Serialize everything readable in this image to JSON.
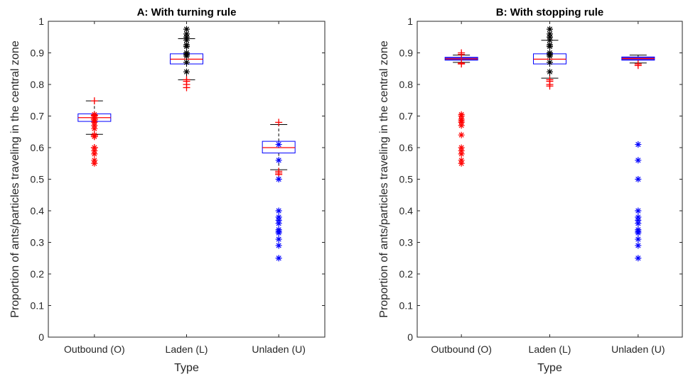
{
  "chart_data": [
    {
      "type": "box",
      "title": "A: With turning rule",
      "xlabel": "Type",
      "ylabel": "Proportion of ants/particles traveling in the central zone",
      "ylim": [
        0,
        1
      ],
      "yticks": [
        "0",
        "0.1",
        "0.2",
        "0.3",
        "0.4",
        "0.5",
        "0.6",
        "0.7",
        "0.8",
        "0.9",
        "1"
      ],
      "grid": false,
      "categories": [
        "Outbound (O)",
        "Laden (L)",
        "Unladen (U)"
      ],
      "boxes": [
        {
          "category": "Outbound (O)",
          "min": 0.642,
          "q1": 0.683,
          "median": 0.695,
          "q3": 0.707,
          "max": 0.748,
          "outliers_plus": [
            0.748,
            0.702,
            0.695,
            0.69,
            0.64,
            0.635,
            0.6
          ],
          "outliers_star": [
            0.705,
            0.7,
            0.69,
            0.685,
            0.68,
            0.67,
            0.66,
            0.64,
            0.635,
            0.6,
            0.59,
            0.58,
            0.56,
            0.55
          ]
        },
        {
          "category": "Laden (L)",
          "min": 0.815,
          "q1": 0.865,
          "median": 0.88,
          "q3": 0.897,
          "max": 0.945,
          "outliers_plus": [
            0.815,
            0.81,
            0.8,
            0.79
          ],
          "outliers_star": [
            0.975,
            0.96,
            0.95,
            0.94,
            0.925,
            0.92,
            0.9,
            0.895,
            0.89,
            0.87,
            0.84
          ]
        },
        {
          "category": "Unladen (U)",
          "min": 0.53,
          "q1": 0.583,
          "median": 0.6,
          "q3": 0.62,
          "max": 0.673,
          "outliers_plus": [
            0.68,
            0.525,
            0.52,
            0.515
          ],
          "outliers_star": [
            0.61,
            0.56,
            0.5,
            0.4,
            0.38,
            0.37,
            0.36,
            0.34,
            0.335,
            0.33,
            0.31,
            0.29,
            0.25
          ]
        }
      ]
    },
    {
      "type": "box",
      "title": "B: With stopping rule",
      "xlabel": "Type",
      "ylabel": "Proportion of ants/particles traveling in the central zone",
      "ylim": [
        0,
        1
      ],
      "yticks": [
        "0",
        "0.1",
        "0.2",
        "0.3",
        "0.4",
        "0.5",
        "0.6",
        "0.7",
        "0.8",
        "0.9",
        "1"
      ],
      "grid": false,
      "categories": [
        "Outbound (O)",
        "Laden (L)",
        "Unladen (U)"
      ],
      "boxes": [
        {
          "category": "Outbound (O)",
          "min": 0.87,
          "q1": 0.877,
          "median": 0.881,
          "q3": 0.886,
          "max": 0.893,
          "outliers_plus": [
            0.9,
            0.895,
            0.868,
            0.865
          ],
          "outliers_star": [
            0.705,
            0.7,
            0.69,
            0.685,
            0.68,
            0.67,
            0.64,
            0.6,
            0.59,
            0.58,
            0.56,
            0.55
          ]
        },
        {
          "category": "Laden (L)",
          "min": 0.82,
          "q1": 0.865,
          "median": 0.88,
          "q3": 0.897,
          "max": 0.94,
          "outliers_plus": [
            0.815,
            0.81,
            0.8,
            0.795
          ],
          "outliers_star": [
            0.975,
            0.96,
            0.95,
            0.94,
            0.925,
            0.92,
            0.9,
            0.895,
            0.89,
            0.87,
            0.84
          ]
        },
        {
          "category": "Unladen (U)",
          "min": 0.868,
          "q1": 0.877,
          "median": 0.882,
          "q3": 0.887,
          "max": 0.893,
          "outliers_plus": [
            0.865,
            0.86
          ],
          "outliers_star": [
            0.61,
            0.56,
            0.5,
            0.4,
            0.38,
            0.37,
            0.36,
            0.34,
            0.335,
            0.33,
            0.31,
            0.29,
            0.25
          ]
        }
      ]
    }
  ],
  "colors": {
    "box": "#0000ff",
    "median": "#ff0000",
    "whisker": "#000000",
    "plus_outlier": "#ff0000",
    "star": [
      "#ff0000",
      "#000000",
      "#0000ff"
    ],
    "axis": "#262626",
    "box_fill_B": [
      "#5a2bd6",
      null,
      "#5a2bd6"
    ]
  }
}
